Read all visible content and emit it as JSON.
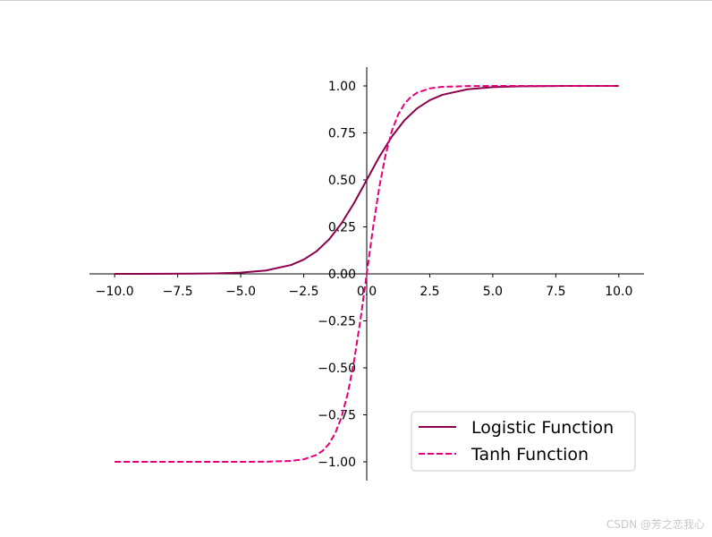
{
  "chart_data": {
    "type": "line",
    "title": "",
    "xlabel": "",
    "ylabel": "",
    "xlim": [
      -11,
      11
    ],
    "ylim": [
      -1.1,
      1.1
    ],
    "x_ticks": [
      -10.0,
      -7.5,
      -5.0,
      -2.5,
      0.0,
      2.5,
      5.0,
      7.5,
      10.0
    ],
    "x_tick_labels": [
      "−10.0",
      "−7.5",
      "−5.0",
      "−2.5",
      "0.0",
      "2.5",
      "5.0",
      "7.5",
      "10.0"
    ],
    "y_ticks": [
      -1.0,
      -0.75,
      -0.5,
      -0.25,
      0.0,
      0.25,
      0.5,
      0.75,
      1.0
    ],
    "y_tick_labels": [
      "−1.00",
      "−0.75",
      "−0.50",
      "−0.25",
      "0.00",
      "0.25",
      "0.50",
      "0.75",
      "1.00"
    ],
    "spines": "centered-at-origin",
    "grid": false,
    "legend_position": "lower-right",
    "series": [
      {
        "name": "Logistic Function",
        "style": "solid",
        "color": "#8b0049",
        "x": [
          -10,
          -9,
          -8,
          -7,
          -6,
          -5,
          -4,
          -3,
          -2.5,
          -2,
          -1.5,
          -1,
          -0.5,
          0,
          0.5,
          1,
          1.5,
          2,
          2.5,
          3,
          4,
          5,
          6,
          7,
          8,
          9,
          10
        ],
        "y": [
          4.54e-05,
          0.000123,
          0.000335,
          0.000911,
          0.00247,
          0.00669,
          0.018,
          0.0474,
          0.0759,
          0.1192,
          0.1824,
          0.2689,
          0.3775,
          0.5,
          0.6225,
          0.7311,
          0.8176,
          0.8808,
          0.9241,
          0.9526,
          0.982,
          0.9933,
          0.9975,
          0.9991,
          0.9997,
          0.9999,
          1.0
        ]
      },
      {
        "name": "Tanh Function",
        "style": "dashed",
        "color": "#e0007a",
        "x": [
          -10,
          -5,
          -4,
          -3,
          -2.5,
          -2,
          -1.75,
          -1.5,
          -1.25,
          -1,
          -0.75,
          -0.5,
          -0.25,
          0,
          0.25,
          0.5,
          0.75,
          1,
          1.25,
          1.5,
          1.75,
          2,
          2.5,
          3,
          4,
          5,
          10
        ],
        "y": [
          -1.0,
          -0.9999,
          -0.9993,
          -0.9951,
          -0.9866,
          -0.964,
          -0.9414,
          -0.9051,
          -0.8483,
          -0.7616,
          -0.6351,
          -0.4621,
          -0.2449,
          0,
          0.2449,
          0.4621,
          0.6351,
          0.7616,
          0.8483,
          0.9051,
          0.9414,
          0.964,
          0.9866,
          0.9951,
          0.9993,
          0.9999,
          1.0
        ]
      }
    ]
  },
  "watermark": "CSDN @芳之恋我心"
}
